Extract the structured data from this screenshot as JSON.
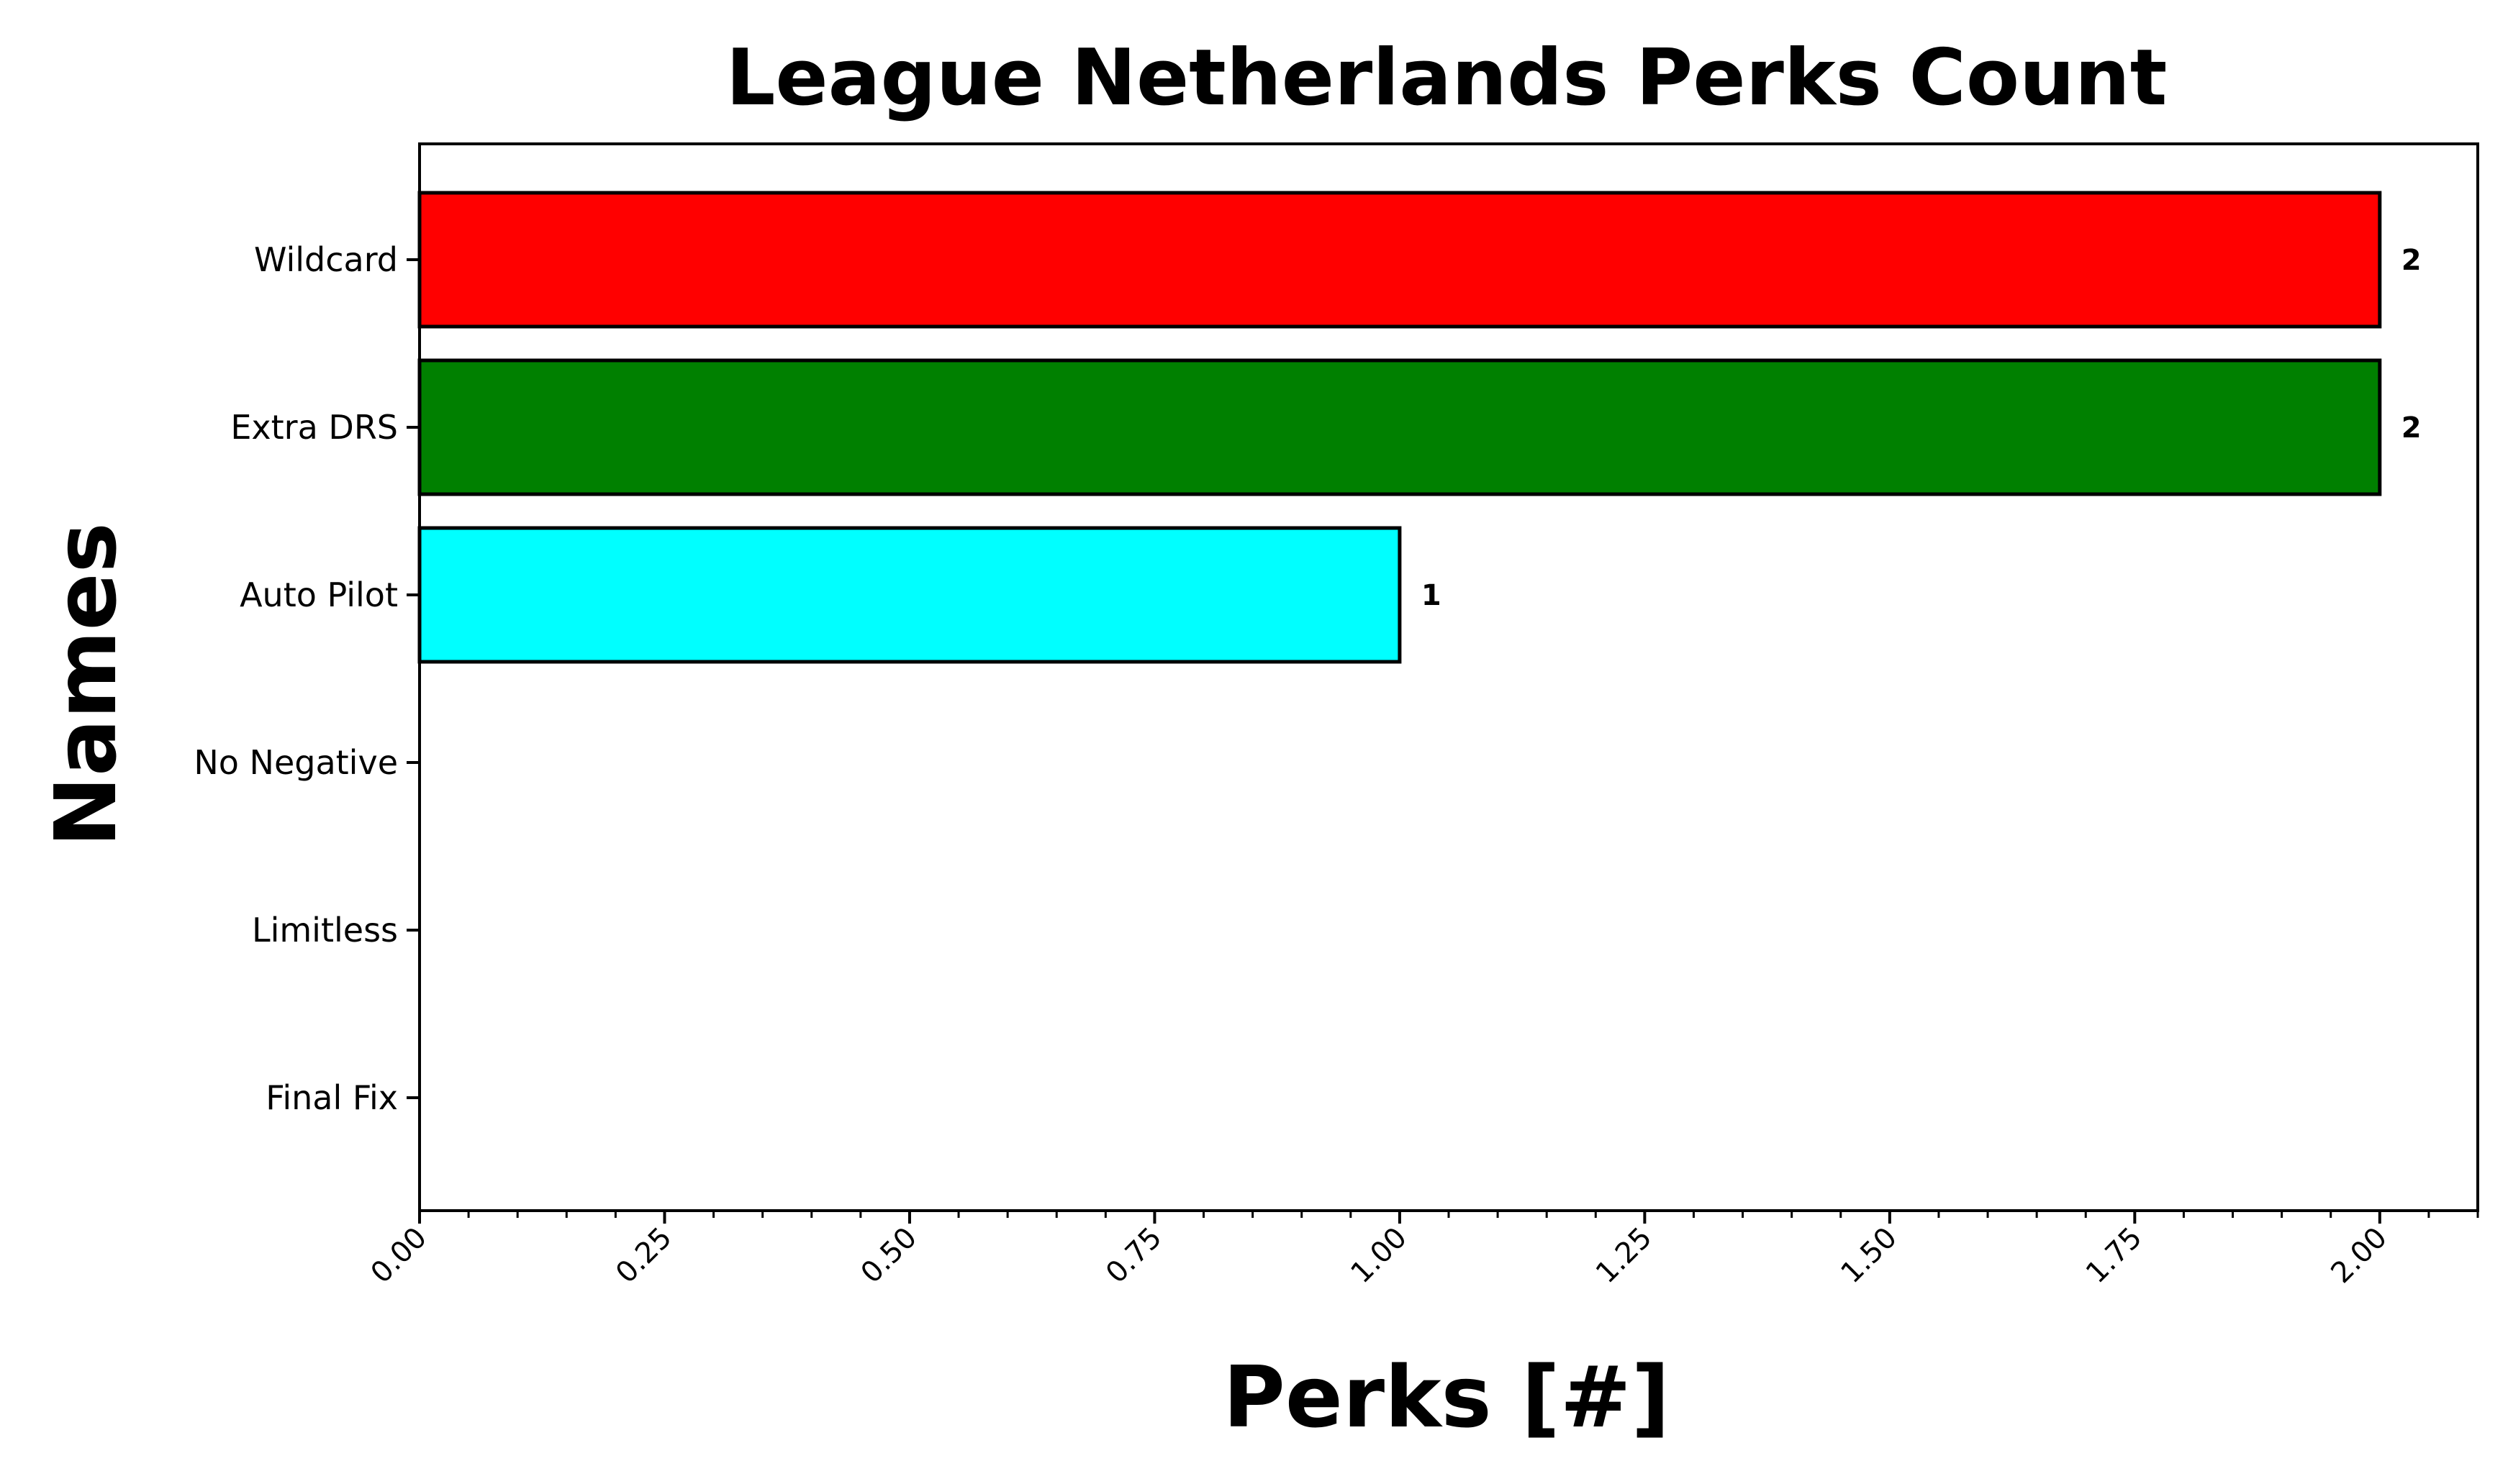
{
  "chart_data": {
    "type": "bar",
    "orientation": "horizontal",
    "title": "League Netherlands Perks Count",
    "xlabel": "Perks [#]",
    "ylabel": "Names",
    "categories": [
      "Wildcard",
      "Extra DRS",
      "Auto Pilot",
      "No Negative",
      "Limitless",
      "Final Fix"
    ],
    "values": [
      2,
      2,
      1,
      0,
      0,
      0
    ],
    "data_labels": [
      "2",
      "2",
      "1",
      "",
      "",
      ""
    ],
    "bar_colors": [
      "#ff0000",
      "#008000",
      "#00ffff",
      "#ffffff",
      "#ffffff",
      "#ffffff"
    ],
    "xlim": [
      0,
      2.1
    ],
    "xticks": [
      0,
      0.25,
      0.5,
      0.75,
      1.0,
      1.25,
      1.5,
      1.75,
      2.0
    ],
    "xtick_labels": [
      "0.00",
      "0.25",
      "0.50",
      "0.75",
      "1.00",
      "1.25",
      "1.50",
      "1.75",
      "2.00"
    ],
    "grid": false,
    "legend": "none"
  }
}
